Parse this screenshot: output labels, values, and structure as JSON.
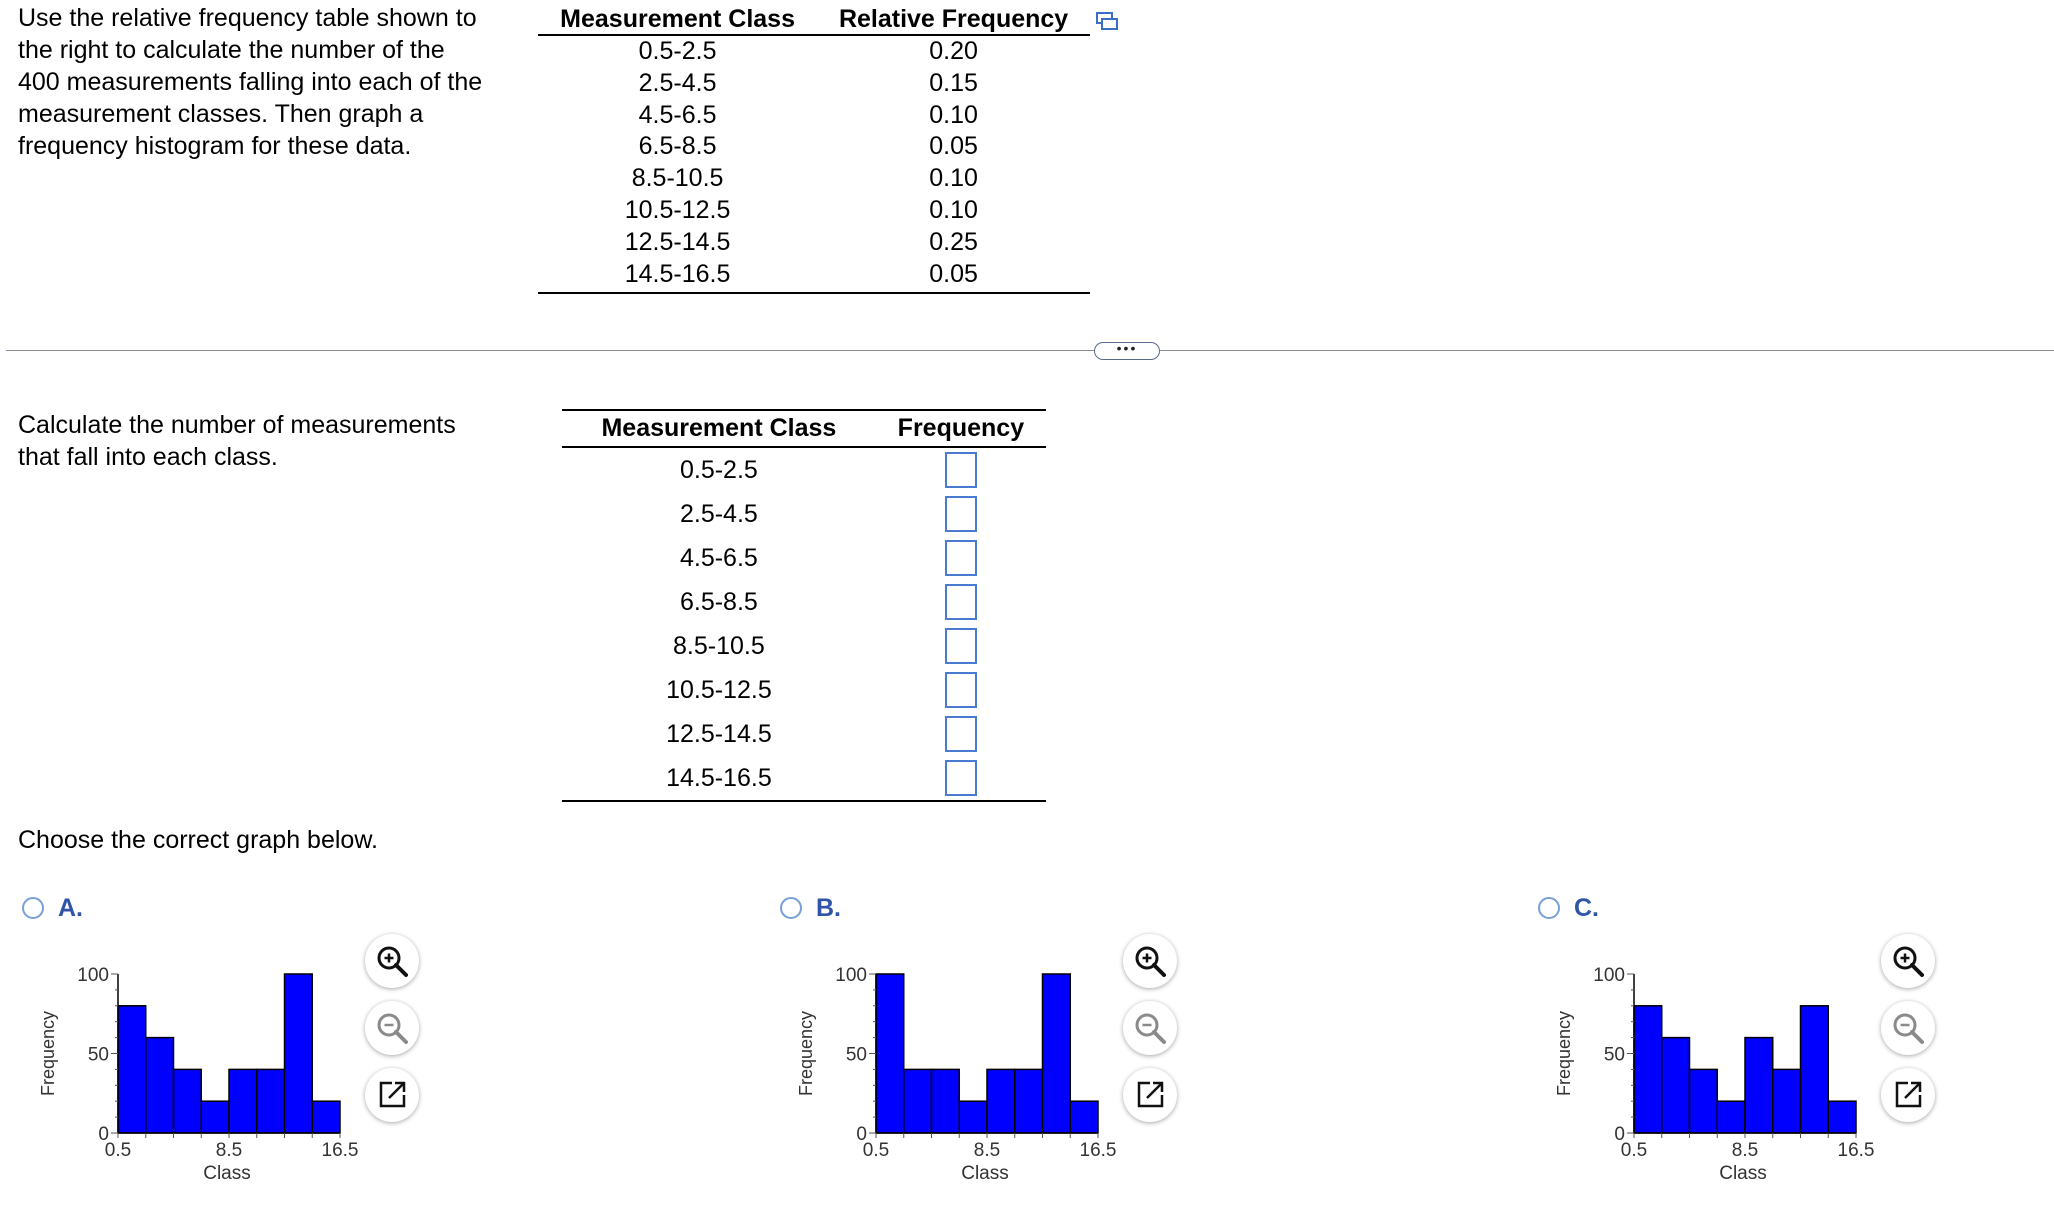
{
  "question": {
    "intro": "Use the relative frequency table shown to the right to calculate the number of the 400 measurements falling into each of the measurement classes. Then graph a frequency histogram for these data.",
    "intro_lines": [
      "Use the relative frequency table shown to",
      "the right to calculate the number of the",
      "400 measurements falling into each of the",
      "measurement classes. Then graph a",
      "frequency histogram for these data."
    ],
    "given_table": {
      "headers": [
        "Measurement Class",
        "Relative Frequency"
      ],
      "rows": [
        [
          "0.5-2.5",
          "0.20"
        ],
        [
          "2.5-4.5",
          "0.15"
        ],
        [
          "4.5-6.5",
          "0.10"
        ],
        [
          "6.5-8.5",
          "0.05"
        ],
        [
          "8.5-10.5",
          "0.10"
        ],
        [
          "10.5-12.5",
          "0.10"
        ],
        [
          "12.5-14.5",
          "0.25"
        ],
        [
          "14.5-16.5",
          "0.05"
        ]
      ]
    },
    "more_label": "•••"
  },
  "part1": {
    "prompt_lines": [
      "Calculate the number of measurements",
      "that fall into each class."
    ],
    "headers": [
      "Measurement Class",
      "Frequency"
    ],
    "classes": [
      "0.5-2.5",
      "2.5-4.5",
      "4.5-6.5",
      "6.5-8.5",
      "8.5-10.5",
      "10.5-12.5",
      "12.5-14.5",
      "14.5-16.5"
    ],
    "answers": [
      "",
      "",
      "",
      "",
      "",
      "",
      "",
      ""
    ]
  },
  "part2": {
    "prompt": "Choose the correct graph below.",
    "options": [
      {
        "letter": "A.",
        "values": [
          80,
          60,
          40,
          20,
          40,
          40,
          100,
          20
        ]
      },
      {
        "letter": "B.",
        "values": [
          100,
          40,
          40,
          20,
          40,
          40,
          100,
          20
        ]
      },
      {
        "letter": "C.",
        "values": [
          80,
          60,
          40,
          20,
          60,
          40,
          80,
          20
        ]
      }
    ]
  },
  "chart_data": [
    {
      "type": "bar",
      "option": "A",
      "xlabel": "Class",
      "ylabel": "Frequency",
      "ylim": [
        0,
        100
      ],
      "y_ticks": [
        "0",
        "50",
        "100"
      ],
      "x_ticks": [
        "0.5",
        "8.5",
        "16.5"
      ],
      "bin_edges": [
        0.5,
        2.5,
        4.5,
        6.5,
        8.5,
        10.5,
        12.5,
        14.5,
        16.5
      ],
      "values": [
        80,
        60,
        40,
        20,
        40,
        40,
        100,
        20
      ],
      "color": "#0000ff"
    },
    {
      "type": "bar",
      "option": "B",
      "xlabel": "Class",
      "ylabel": "Frequency",
      "ylim": [
        0,
        100
      ],
      "y_ticks": [
        "0",
        "50",
        "100"
      ],
      "x_ticks": [
        "0.5",
        "8.5",
        "16.5"
      ],
      "bin_edges": [
        0.5,
        2.5,
        4.5,
        6.5,
        8.5,
        10.5,
        12.5,
        14.5,
        16.5
      ],
      "values": [
        100,
        40,
        40,
        20,
        40,
        40,
        100,
        20
      ],
      "color": "#0000ff"
    },
    {
      "type": "bar",
      "option": "C",
      "xlabel": "Class",
      "ylabel": "Frequency",
      "ylim": [
        0,
        100
      ],
      "y_ticks": [
        "0",
        "50",
        "100"
      ],
      "x_ticks": [
        "0.5",
        "8.5",
        "16.5"
      ],
      "bin_edges": [
        0.5,
        2.5,
        4.5,
        6.5,
        8.5,
        10.5,
        12.5,
        14.5,
        16.5
      ],
      "values": [
        80,
        60,
        40,
        20,
        60,
        40,
        80,
        20
      ],
      "color": "#0000ff"
    }
  ],
  "icons": {
    "copy": "copy-table-icon",
    "zoom_in": "zoom-in-icon",
    "zoom_out": "zoom-out-icon",
    "open": "open-new-window-icon"
  },
  "colors": {
    "bar_fill": "#0000ff",
    "option_letter": "#2f54a8",
    "radio_border": "#7a9fd8",
    "input_border": "#4a7bd0"
  }
}
